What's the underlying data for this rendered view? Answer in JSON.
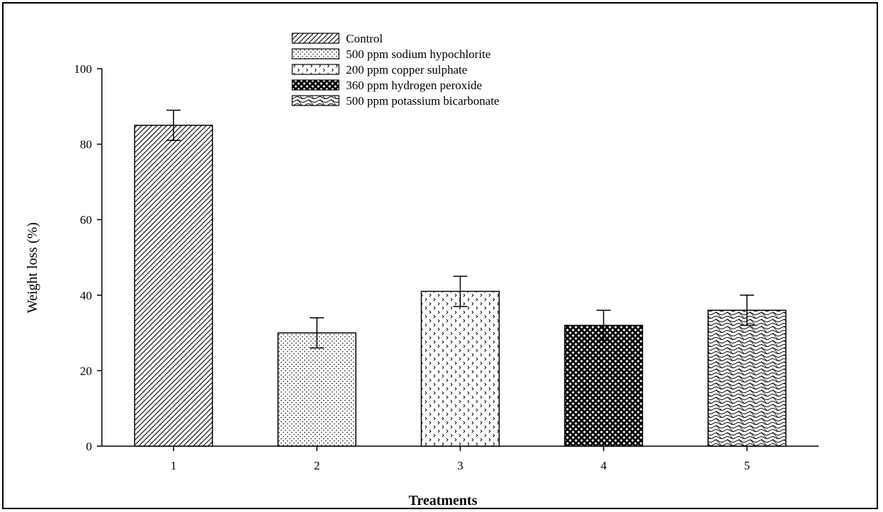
{
  "chart_data": {
    "type": "bar",
    "xlabel": "Treatments",
    "ylabel": "Weight loss (%)",
    "categories": [
      "1",
      "2",
      "3",
      "4",
      "5"
    ],
    "values": [
      85,
      30,
      41,
      32,
      36
    ],
    "errors": [
      4,
      4,
      4,
      4,
      4
    ],
    "ylim": [
      0,
      100
    ],
    "yticks": [
      0,
      20,
      40,
      60,
      80,
      100
    ],
    "legend_position": "top-center",
    "series": [
      {
        "name": "Control",
        "pattern": "diagonal-hatch"
      },
      {
        "name": "500 ppm sodium hypochlorite",
        "pattern": "fine-dots"
      },
      {
        "name": "200 ppm copper sulphate",
        "pattern": "chevron-dots"
      },
      {
        "name": "360 ppm hydrogen peroxide",
        "pattern": "dense-circles"
      },
      {
        "name": "500 ppm potassium bicarbonate",
        "pattern": "wave"
      }
    ],
    "grid": false
  }
}
